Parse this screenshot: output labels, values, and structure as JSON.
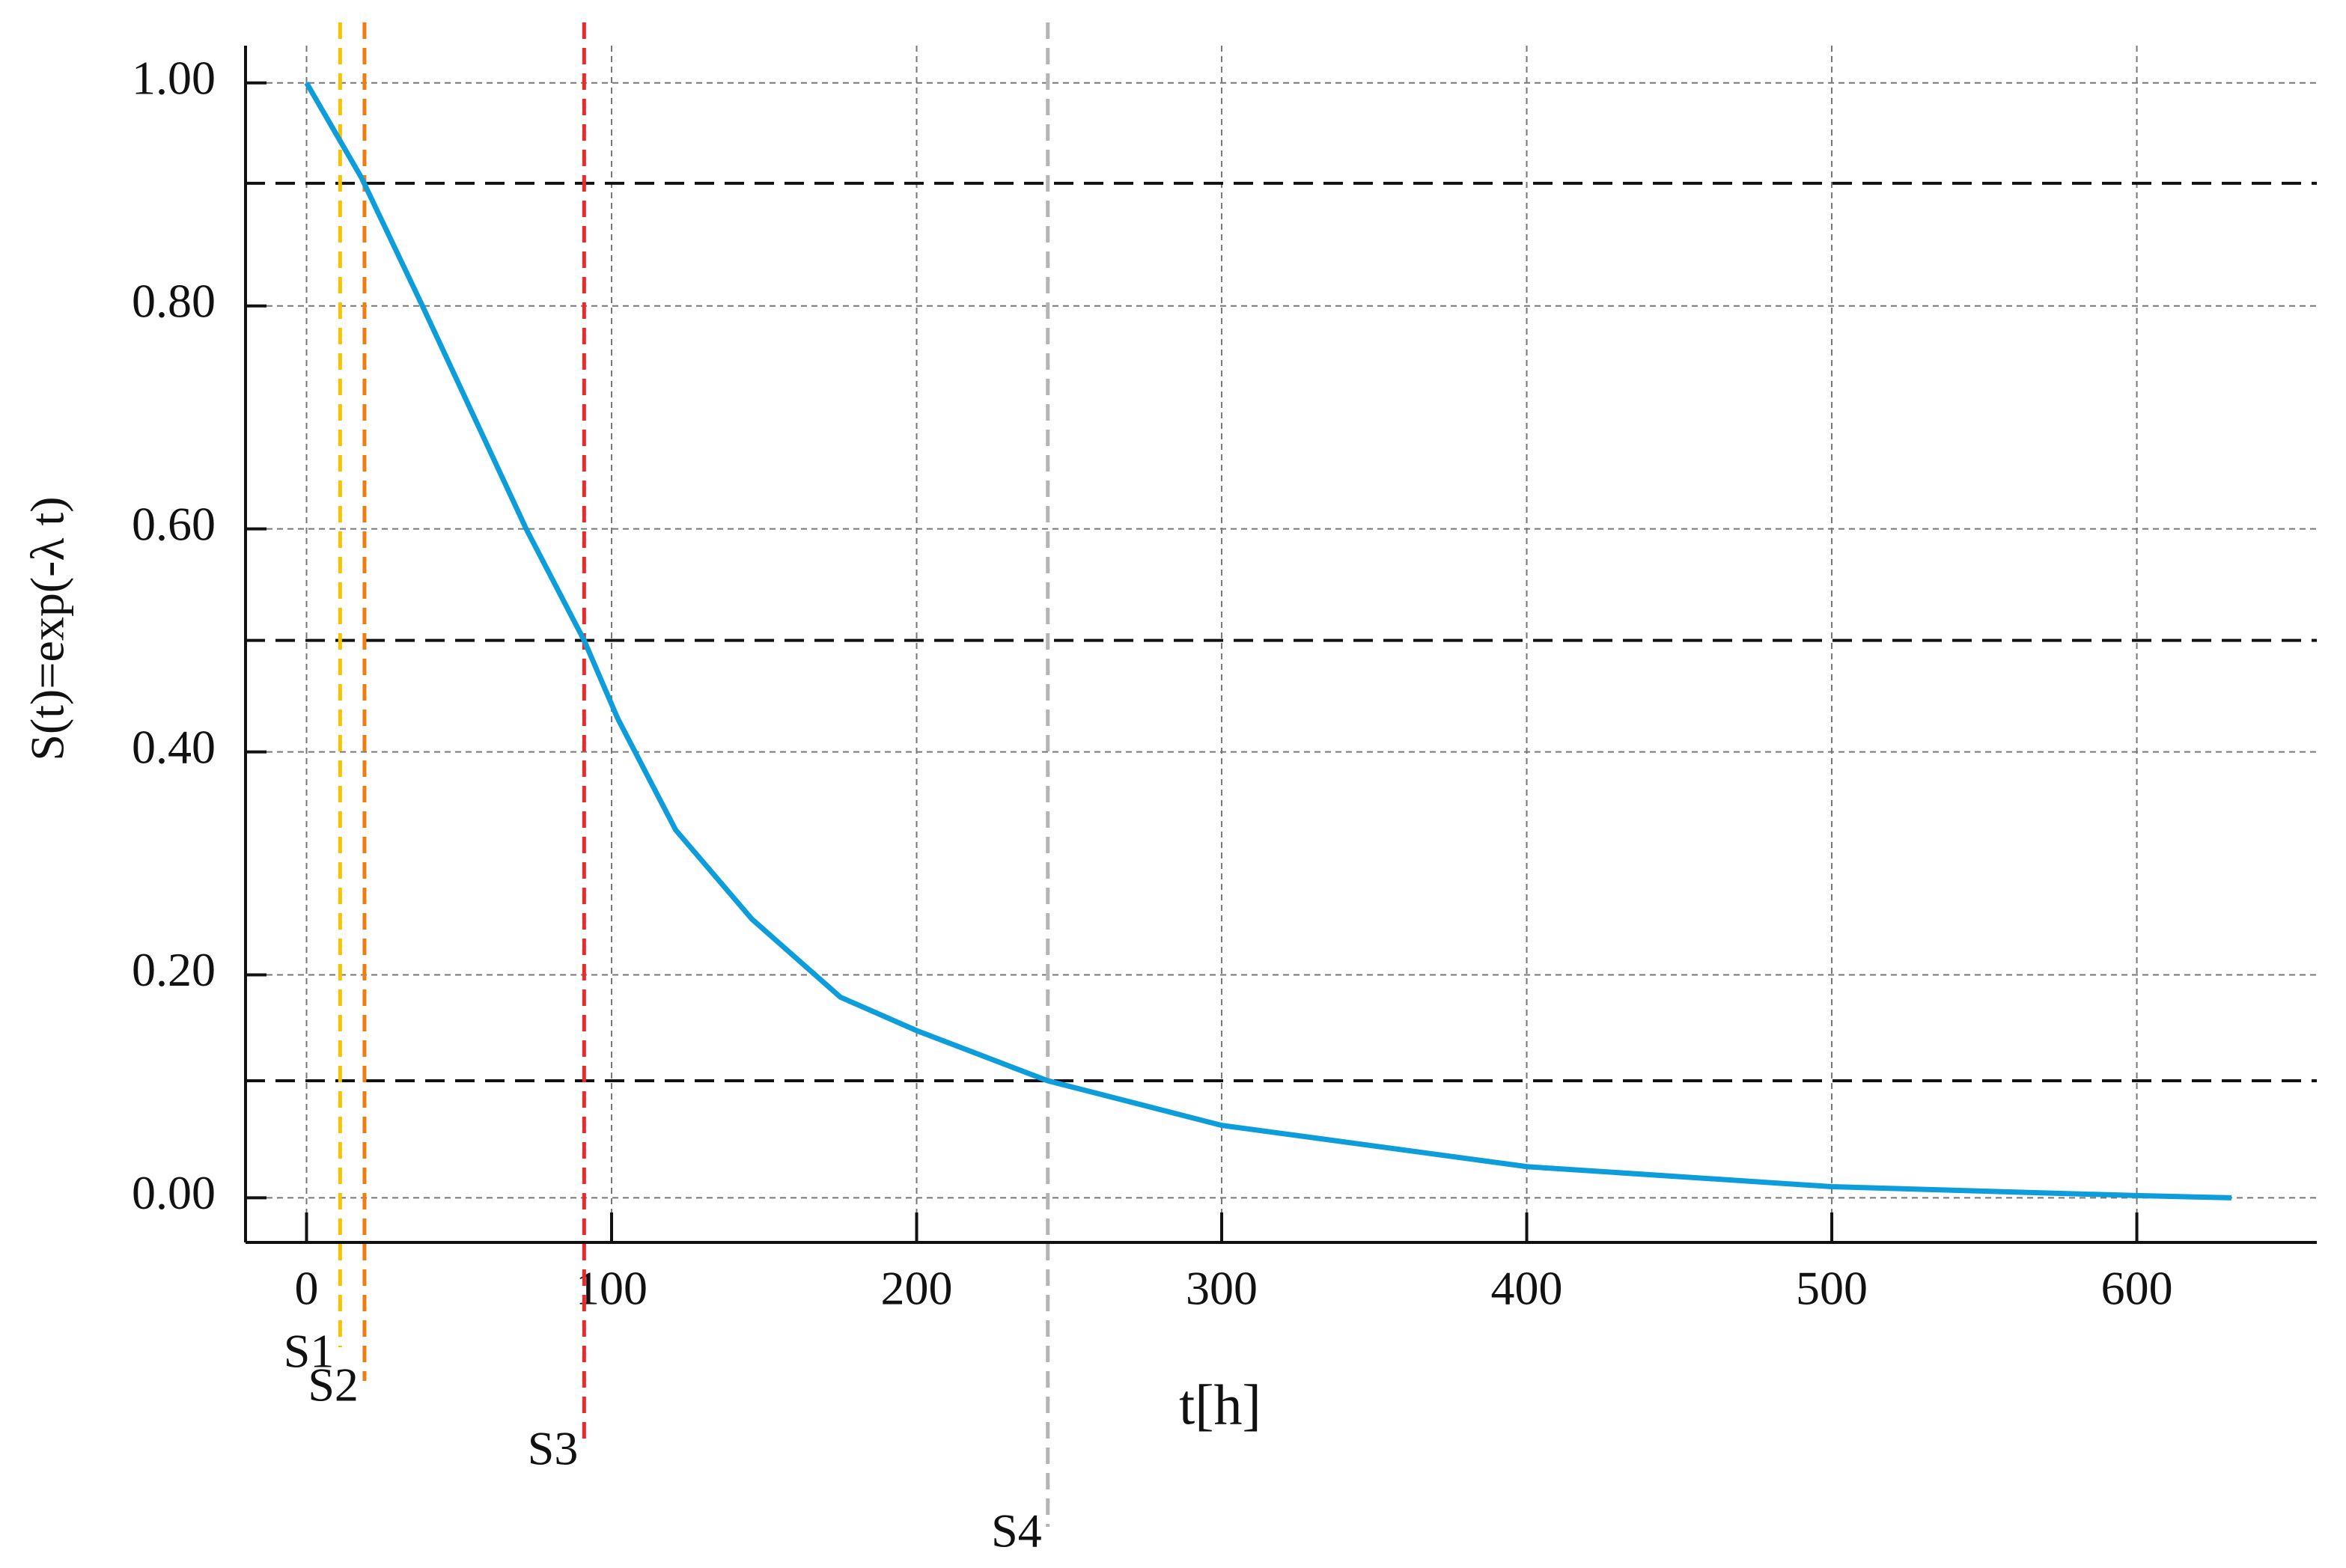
{
  "chart_data": {
    "type": "line",
    "ylabel": "S(t)=exp(-λ t)",
    "xlabel": "t[h]",
    "x": [
      0,
      18,
      38,
      72,
      91,
      102,
      121,
      146,
      175,
      200,
      243,
      300,
      400,
      500,
      600,
      631
    ],
    "values": [
      1.0,
      0.915,
      0.8,
      0.6,
      0.5,
      0.43,
      0.33,
      0.25,
      0.18,
      0.15,
      0.105,
      0.065,
      0.028,
      0.01,
      0.002,
      0.0
    ],
    "color": "#0d9ddb",
    "xlim": [
      -20,
      659
    ],
    "ylim": [
      -0.04,
      1.02
    ],
    "xticks": [
      0,
      100,
      200,
      300,
      400,
      500,
      600
    ],
    "yticks": [
      {
        "value": 0,
        "label": "0.00"
      },
      {
        "value": 0.2,
        "label": "0.20"
      },
      {
        "value": 0.4,
        "label": "0.40"
      },
      {
        "value": 0.6,
        "label": "0.60"
      },
      {
        "value": 0.8,
        "label": "0.80"
      },
      {
        "value": 1,
        "label": "1.00"
      }
    ],
    "grid": true,
    "hlines": [
      0.91,
      0.5,
      0.105
    ],
    "vlines": [
      {
        "label": "S1",
        "x": 11,
        "color": "#f5c400"
      },
      {
        "label": "S2",
        "x": 19,
        "color": "#f07d12"
      },
      {
        "label": "S3",
        "x": 91,
        "color": "#e82a2a"
      },
      {
        "label": "S4",
        "x": 243,
        "color": "#b4b4b4"
      }
    ]
  }
}
